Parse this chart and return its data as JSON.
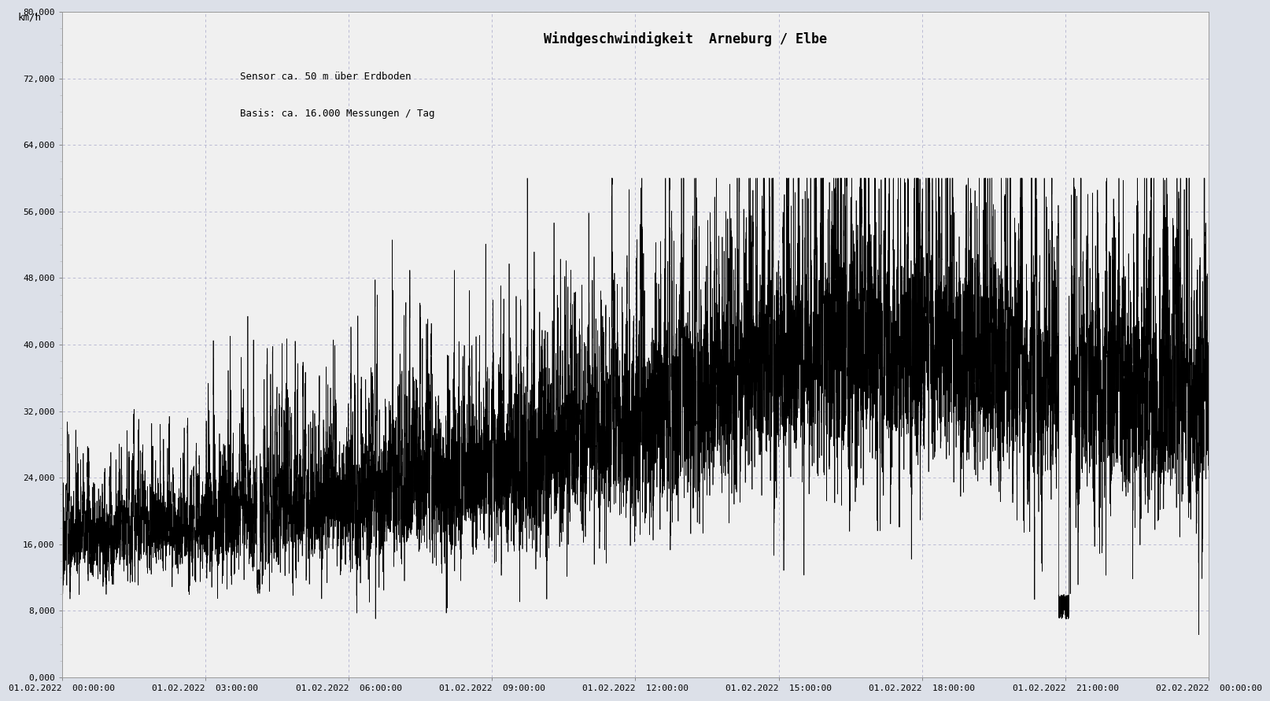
{
  "title": "Windgeschwindigkeit  Arneburg / Elbe",
  "subtitle1": "Sensor ca. 50 m über Erdboden",
  "subtitle2": "Basis: ca. 16.000 Messungen / Tag",
  "ylabel": "km/h",
  "background_color": "#dce0e8",
  "plot_bg_color": "#f0f0f0",
  "line_color": "#000000",
  "grid_color": "#aaaacc",
  "ylim": [
    0,
    80000
  ],
  "yticks": [
    0,
    8000,
    16000,
    24000,
    32000,
    40000,
    48000,
    56000,
    64000,
    72000,
    80000
  ],
  "ytick_labels": [
    "0,000",
    "8,000",
    "16,000",
    "24,000",
    "32,000",
    "40,000",
    "48,000",
    "56,000",
    "64,000",
    "72,000",
    "80,000"
  ],
  "xtick_labels": [
    "01.02.2022  00:00:00",
    "01.02.2022  03:00:00",
    "01.02.2022  06:00:00",
    "01.02.2022  09:00:00",
    "01.02.2022  12:00:00",
    "01.02.2022  15:00:00",
    "01.02.2022  18:00:00",
    "01.02.2022  21:00:00",
    "02.02.2022  00:00:00"
  ],
  "n_points": 17280,
  "seed": 42,
  "font_family": "monospace",
  "title_fontsize": 12,
  "label_fontsize": 9,
  "tick_fontsize": 8
}
